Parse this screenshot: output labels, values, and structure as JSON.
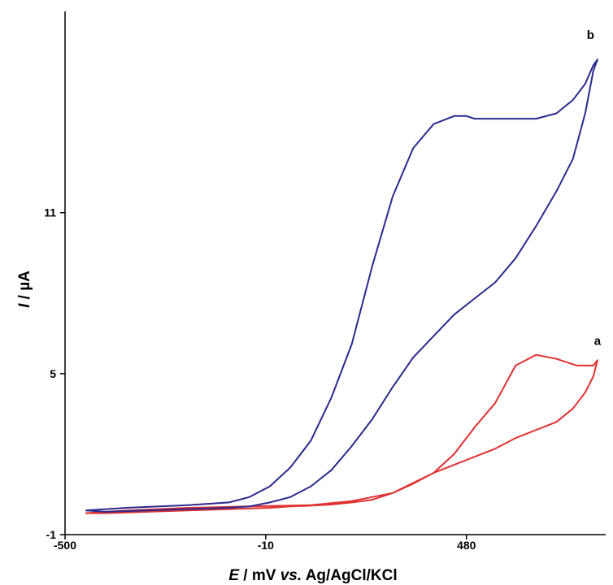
{
  "chart_data": {
    "type": "line",
    "title": "",
    "xlabel": {
      "italic": "E",
      "rest_before": " / mV ",
      "italic2": "vs.",
      "rest_after": " Ag/AgCl/KCl"
    },
    "ylabel": {
      "italic": "I",
      "rest": " / µA"
    },
    "xlim": [
      -500,
      820
    ],
    "ylim": [
      -1,
      18.5
    ],
    "x_ticks": [
      {
        "value": -500,
        "label": "-500"
      },
      {
        "value": -10,
        "label": "-10"
      },
      {
        "value": 480,
        "label": "480"
      }
    ],
    "y_ticks": [
      {
        "value": -1,
        "label": "-1"
      },
      {
        "value": 5,
        "label": "5"
      },
      {
        "value": 11,
        "label": "11"
      }
    ],
    "grid": false,
    "series": [
      {
        "name": "a",
        "color": "#e03030",
        "label_at": [
          800,
          5.7
        ],
        "x": [
          -450,
          -350,
          -200,
          -50,
          100,
          200,
          300,
          400,
          450,
          500,
          550,
          600,
          650,
          700,
          750,
          790,
          800,
          790,
          770,
          740,
          700,
          650,
          600,
          550,
          500,
          450,
          400,
          350,
          300,
          250,
          200,
          150,
          100,
          50,
          0,
          -100,
          -200,
          -300,
          -400,
          -450
        ],
        "y": [
          -0.2,
          -0.1,
          0.0,
          0.05,
          0.1,
          0.25,
          0.55,
          1.3,
          2.0,
          3.0,
          3.9,
          5.3,
          5.7,
          5.55,
          5.3,
          5.3,
          5.5,
          4.9,
          4.3,
          3.7,
          3.2,
          2.9,
          2.6,
          2.2,
          1.9,
          1.6,
          1.3,
          0.9,
          0.55,
          0.3,
          0.2,
          0.12,
          0.08,
          0.05,
          0.0,
          -0.05,
          -0.1,
          -0.15,
          -0.2,
          -0.2
        ]
      },
      {
        "name": "b",
        "color": "#2a2a8f",
        "label_at": [
          783,
          17.1
        ],
        "x": [
          -450,
          -350,
          -200,
          -100,
          -50,
          0,
          50,
          100,
          150,
          200,
          250,
          300,
          350,
          400,
          450,
          480,
          500,
          540,
          600,
          650,
          700,
          740,
          770,
          790,
          800,
          790,
          770,
          740,
          700,
          650,
          600,
          550,
          500,
          450,
          400,
          350,
          300,
          250,
          200,
          150,
          100,
          50,
          0,
          -50,
          -100,
          -200,
          -300,
          -400,
          -450
        ],
        "y": [
          -0.1,
          0.0,
          0.1,
          0.2,
          0.4,
          0.8,
          1.5,
          2.5,
          4.1,
          6.1,
          9.0,
          11.6,
          13.4,
          14.3,
          14.6,
          14.6,
          14.5,
          14.5,
          14.5,
          14.5,
          14.7,
          15.2,
          15.8,
          16.5,
          16.7,
          16.3,
          14.7,
          13.0,
          11.8,
          10.5,
          9.3,
          8.4,
          7.8,
          7.2,
          6.4,
          5.6,
          4.5,
          3.3,
          2.3,
          1.4,
          0.8,
          0.4,
          0.2,
          0.05,
          0.0,
          -0.05,
          -0.1,
          -0.15,
          -0.1
        ]
      }
    ]
  }
}
